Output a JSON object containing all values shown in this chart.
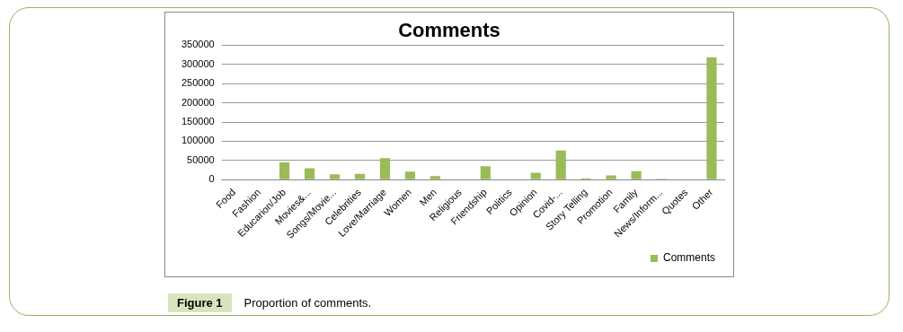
{
  "chart_data": {
    "type": "bar",
    "title": "Comments",
    "categories": [
      "Food",
      "Fashion",
      "Educarion/Job",
      "Movies&...",
      "Songs/Movie...",
      "Celebrities",
      "Love/Marriage",
      "Women",
      "Men",
      "Religious",
      "Friendship",
      "Politics",
      "Opinion",
      "Covid-...",
      "Story Telling",
      "Promotion",
      "Family",
      "News/Inform...",
      "Quotes",
      "Other"
    ],
    "series": [
      {
        "name": "Comments",
        "color": "#9bbb59",
        "values": [
          0,
          0,
          45000,
          30000,
          14000,
          15000,
          56000,
          21000,
          9500,
          0,
          35000,
          0,
          18000,
          76000,
          3500,
          11000,
          22000,
          2400,
          0,
          318000
        ]
      }
    ],
    "ylim": [
      0,
      350000
    ],
    "yticks": [
      0,
      50000,
      100000,
      150000,
      200000,
      250000,
      300000,
      350000
    ],
    "grid": "y",
    "legend": "bottom right",
    "annotations": [
      "Figure 1",
      "Proportion of comments."
    ]
  }
}
